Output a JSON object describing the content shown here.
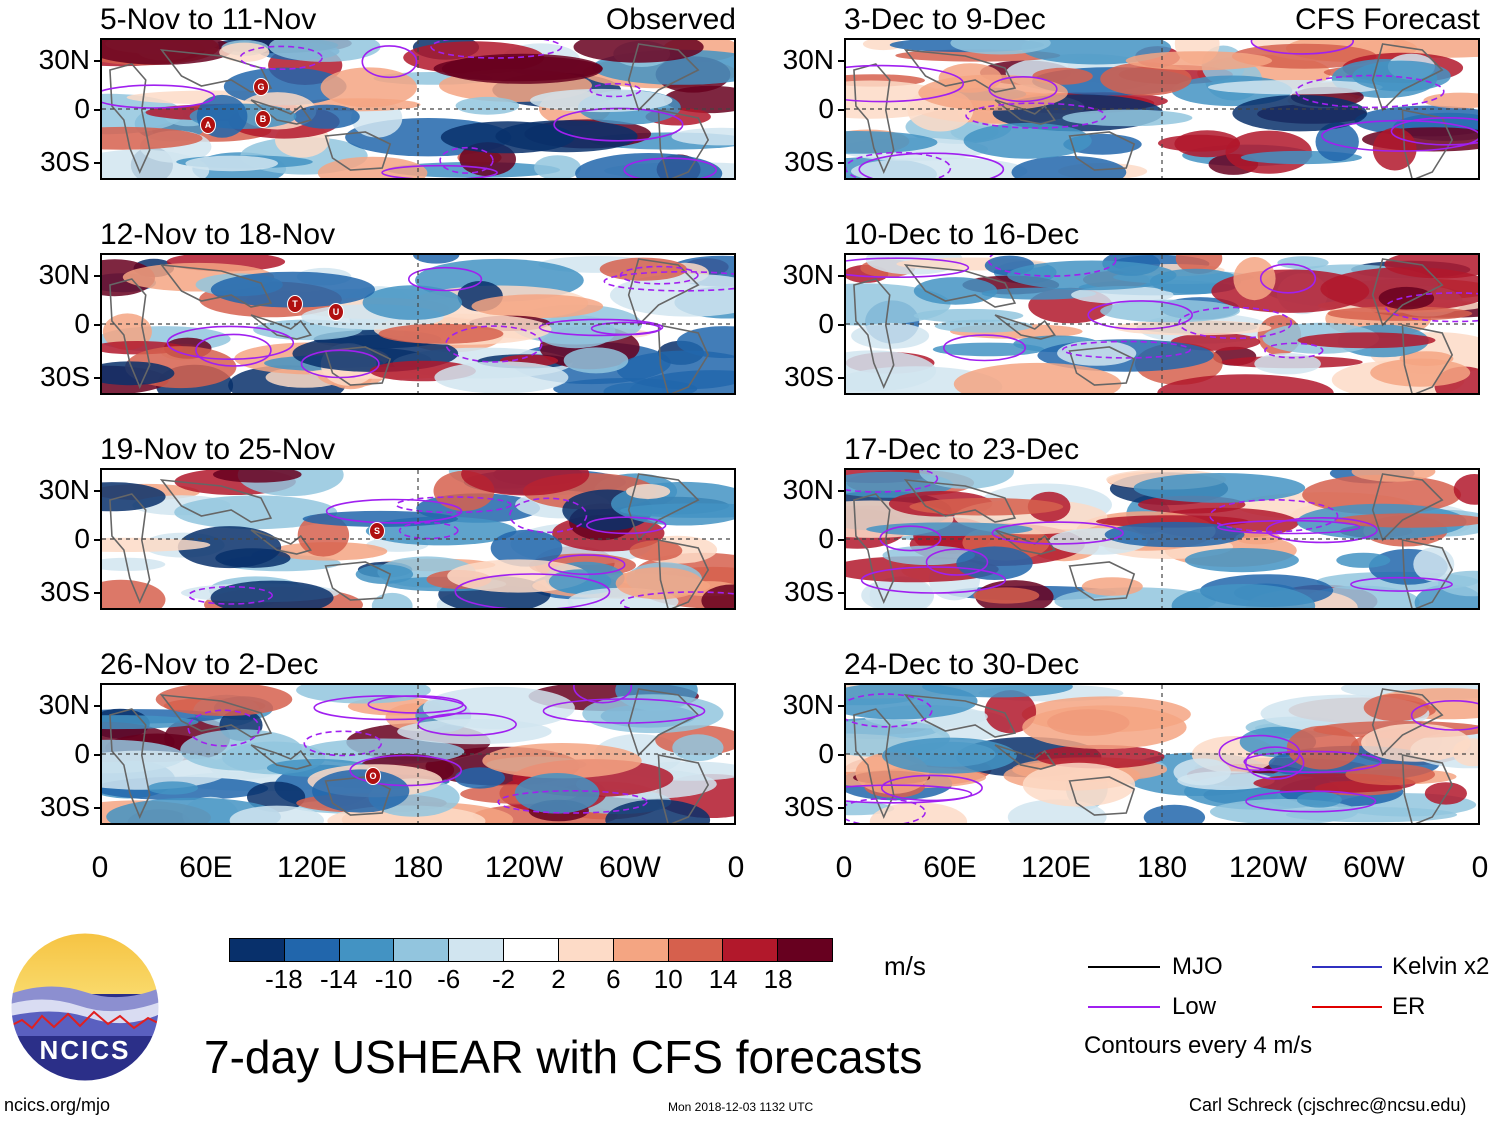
{
  "panels": [
    {
      "title": "5-Nov to 11-Nov",
      "source": "Observed"
    },
    {
      "title": "12-Nov to 18-Nov",
      "source": ""
    },
    {
      "title": "19-Nov to 25-Nov",
      "source": ""
    },
    {
      "title": "26-Nov to 2-Dec",
      "source": ""
    },
    {
      "title": "3-Dec to 9-Dec",
      "source": "CFS Forecast"
    },
    {
      "title": "10-Dec to 16-Dec",
      "source": ""
    },
    {
      "title": "17-Dec to 23-Dec",
      "source": ""
    },
    {
      "title": "24-Dec to 30-Dec",
      "source": ""
    }
  ],
  "lat_labels": [
    "30N",
    "0",
    "30S"
  ],
  "lon_labels": [
    "0",
    "60E",
    "120E",
    "180",
    "120W",
    "60W",
    "0"
  ],
  "colorbar": {
    "colors": [
      "#08306b",
      "#2166ac",
      "#4393c3",
      "#92c5de",
      "#d1e5f0",
      "#ffffff",
      "#fddbc7",
      "#f4a582",
      "#d6604d",
      "#b2182b",
      "#67001f"
    ],
    "labels": [
      "-18",
      "-14",
      "-10",
      "-6",
      "-2",
      "2",
      "6",
      "10",
      "14",
      "18"
    ],
    "units": "m/s"
  },
  "legend": {
    "items": [
      {
        "label": "MJO",
        "color": "#000000"
      },
      {
        "label": "Low",
        "color": "#a020f0"
      },
      {
        "label": "Kelvin x2",
        "color": "#3030c0"
      },
      {
        "label": "ER",
        "color": "#e00000"
      }
    ],
    "note": "Contours every 4 m/s"
  },
  "title": "7-day USHEAR with CFS forecasts",
  "logo_text": "NCICS",
  "footer": {
    "left": "ncics.org/mjo",
    "center": "Mon 2018-12-03 1132 UTC",
    "right": "Carl Schreck (cjschrec@ncsu.edu)"
  },
  "storm_markers": [
    {
      "panel": 0,
      "label": "G"
    },
    {
      "panel": 0,
      "label": "B"
    },
    {
      "panel": 0,
      "label": "A"
    },
    {
      "panel": 1,
      "label": "T"
    },
    {
      "panel": 1,
      "label": "U"
    },
    {
      "panel": 2,
      "label": "S"
    },
    {
      "panel": 3,
      "label": "O"
    }
  ]
}
